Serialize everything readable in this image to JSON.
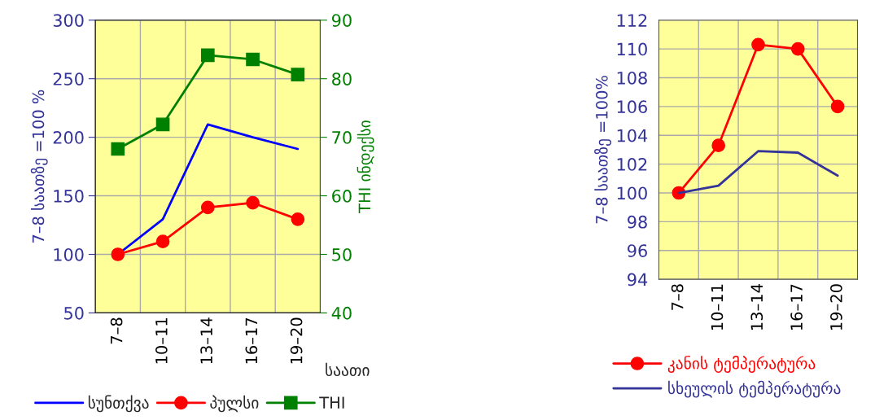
{
  "chart_data": [
    {
      "type": "line",
      "categories": [
        "7–8",
        "10–11",
        "13–14",
        "16–17",
        "19–20"
      ],
      "xlabel": "საათი",
      "ylabel": "7–8 საათზე =100 %",
      "y2label": "THI ინდექსი",
      "ylim": [
        50,
        300
      ],
      "yticks": [
        50,
        100,
        150,
        200,
        250,
        300
      ],
      "y2lim": [
        40,
        90
      ],
      "y2ticks": [
        40,
        50,
        60,
        70,
        80,
        90
      ],
      "grid": true,
      "legend": "bottom",
      "series": [
        {
          "name": "სუნთქვა",
          "color": "#0000ff",
          "marker": "none",
          "values": [
            100,
            130,
            211,
            200,
            190
          ]
        },
        {
          "name": "პულსი",
          "color": "#ff0000",
          "marker": "circle",
          "values": [
            100,
            111,
            140,
            144,
            130
          ]
        },
        {
          "name": "THI",
          "color": "#008000",
          "marker": "square",
          "axis": "y2",
          "values": [
            68,
            72.2,
            84,
            83.3,
            80.7
          ]
        }
      ]
    },
    {
      "type": "line",
      "categories": [
        "7–8",
        "10–11",
        "13–14",
        "16–17",
        "19–20"
      ],
      "ylabel": "7–8 საათზე =100%",
      "ylim": [
        94,
        112
      ],
      "yticks": [
        94,
        96,
        98,
        100,
        102,
        104,
        106,
        108,
        110,
        112
      ],
      "grid": true,
      "legend": "bottom",
      "series": [
        {
          "name": "კანის ტემპერატურა",
          "color": "#ff0000",
          "marker": "circle",
          "values": [
            100,
            103.3,
            110.3,
            110,
            106
          ]
        },
        {
          "name": "სხეულის ტემპერატურა",
          "color": "#333399",
          "marker": "none",
          "values": [
            100,
            100.5,
            102.9,
            102.8,
            101.2
          ]
        }
      ]
    }
  ]
}
